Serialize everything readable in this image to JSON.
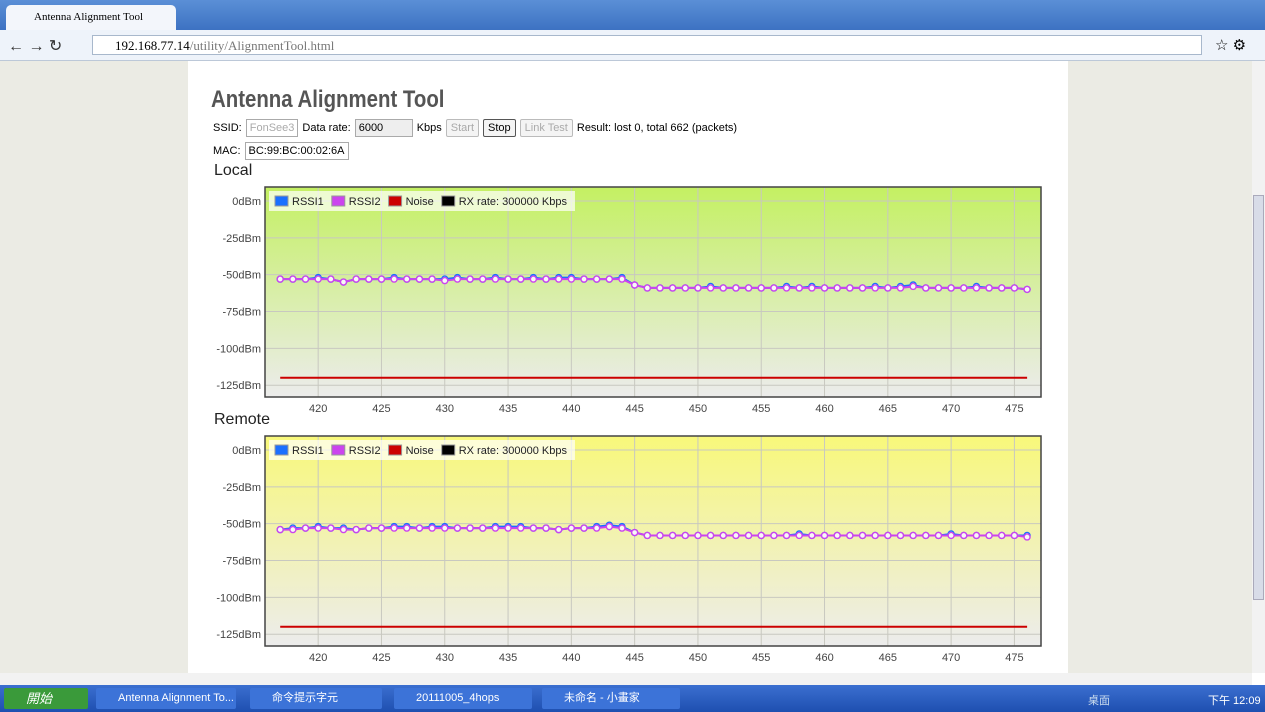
{
  "browser": {
    "tab": "Antenna Alignment Tool",
    "url_host": "192.168.77.14",
    "url_path": "/utility/AlignmentTool.html"
  },
  "page": {
    "heading": "Antenna Alignment Tool",
    "ssid_label": "SSID:",
    "ssid": "FonSee3",
    "rate_label": "Data rate:",
    "rate": "6000",
    "rate_unit": "Kbps",
    "start": "Start",
    "stop": "Stop",
    "link_test": "Link Test",
    "result": "Result: lost 0, total 662 (packets)",
    "mac_label": "MAC:",
    "mac": "BC:99:BC:00:02:6A"
  },
  "taskbar": {
    "start": "開始",
    "items": [
      "Antenna Alignment To...",
      "命令提示字元",
      "20111005_4hops",
      "未命名 - 小畫家"
    ],
    "desktop": "桌面",
    "clock": "下午 12:09"
  },
  "chart_data": [
    {
      "type": "line",
      "title": "Local",
      "legend": "upper left",
      "grid": true,
      "x": [
        417,
        418,
        419,
        420,
        421,
        422,
        423,
        424,
        425,
        426,
        427,
        428,
        429,
        430,
        431,
        432,
        433,
        434,
        435,
        436,
        437,
        438,
        439,
        440,
        441,
        442,
        443,
        444,
        445,
        446,
        447,
        448,
        449,
        450,
        451,
        452,
        453,
        454,
        455,
        456,
        457,
        458,
        459,
        460,
        461,
        462,
        463,
        464,
        465,
        466,
        467,
        468,
        469,
        470,
        471,
        472,
        473,
        474,
        475,
        476
      ],
      "xlim": [
        415.8,
        477.1
      ],
      "xticks": [
        420,
        425,
        430,
        435,
        440,
        445,
        450,
        455,
        460,
        465,
        470,
        475
      ],
      "ylim": [
        -133,
        9.5
      ],
      "yticks": [
        {
          "value": 0,
          "label": "0dBm"
        },
        {
          "value": -25,
          "label": "-25dBm"
        },
        {
          "value": -50,
          "label": "-50dBm"
        },
        {
          "value": -75,
          "label": "-75dBm"
        },
        {
          "value": -100,
          "label": "-100dBm"
        },
        {
          "value": -125,
          "label": "-125dBm"
        }
      ],
      "series": [
        {
          "name": "RSSI1",
          "color": "#1a6fff",
          "values": [
            -53,
            -53,
            -53,
            -52,
            -53,
            -55,
            -53,
            -53,
            -53,
            -52,
            -53,
            -53,
            -53,
            -53,
            -52,
            -53,
            -53,
            -52,
            -53,
            -53,
            -52,
            -53,
            -52,
            -52,
            -53,
            -53,
            -53,
            -52,
            -57,
            -59,
            -59,
            -59,
            -59,
            -59,
            -58,
            -59,
            -59,
            -59,
            -59,
            -59,
            -58,
            -59,
            -58,
            -59,
            -59,
            -59,
            -59,
            -58,
            -59,
            -58,
            -57,
            -59,
            -59,
            -59,
            -59,
            -58,
            -59,
            -59,
            -59,
            -60
          ]
        },
        {
          "name": "RSSI2",
          "color": "#cc44ee",
          "values": [
            -53,
            -53,
            -53,
            -53,
            -53,
            -55,
            -53,
            -53,
            -53,
            -53,
            -53,
            -53,
            -53,
            -54,
            -53,
            -53,
            -53,
            -53,
            -53,
            -53,
            -53,
            -53,
            -53,
            -53,
            -53,
            -53,
            -53,
            -53,
            -57,
            -59,
            -59,
            -59,
            -59,
            -59,
            -59,
            -59,
            -59,
            -59,
            -59,
            -59,
            -59,
            -59,
            -59,
            -59,
            -59,
            -59,
            -59,
            -59,
            -59,
            -59,
            -58,
            -59,
            -59,
            -59,
            -59,
            -59,
            -59,
            -59,
            -59,
            -60
          ]
        },
        {
          "name": "Noise",
          "color": "#cc0000",
          "values": [
            -120,
            -120,
            -120,
            -120,
            -120,
            -120,
            -120,
            -120,
            -120,
            -120,
            -120,
            -120,
            -120,
            -120,
            -120,
            -120,
            -120,
            -120,
            -120,
            -120,
            -120,
            -120,
            -120,
            -120,
            -120,
            -120,
            -120,
            -120,
            -120,
            -120,
            -120,
            -120,
            -120,
            -120,
            -120,
            -120,
            -120,
            -120,
            -120,
            -120,
            -120,
            -120,
            -120,
            -120,
            -120,
            -120,
            -120,
            -120,
            -120,
            -120,
            -120,
            -120,
            -120,
            -120,
            -120,
            -120,
            -120,
            -120,
            -120,
            -120
          ]
        },
        {
          "name": "RX rate: 300000 Kbps",
          "color": "#000000"
        }
      ]
    },
    {
      "type": "line",
      "title": "Remote",
      "legend": "upper left",
      "grid": true,
      "x": [
        417,
        418,
        419,
        420,
        421,
        422,
        423,
        424,
        425,
        426,
        427,
        428,
        429,
        430,
        431,
        432,
        433,
        434,
        435,
        436,
        437,
        438,
        439,
        440,
        441,
        442,
        443,
        444,
        445,
        446,
        447,
        448,
        449,
        450,
        451,
        452,
        453,
        454,
        455,
        456,
        457,
        458,
        459,
        460,
        461,
        462,
        463,
        464,
        465,
        466,
        467,
        468,
        469,
        470,
        471,
        472,
        473,
        474,
        475,
        476
      ],
      "xlim": [
        415.8,
        477.1
      ],
      "xticks": [
        420,
        425,
        430,
        435,
        440,
        445,
        450,
        455,
        460,
        465,
        470,
        475
      ],
      "ylim": [
        -133,
        9.5
      ],
      "yticks": [
        {
          "value": 0,
          "label": "0dBm"
        },
        {
          "value": -25,
          "label": "-25dBm"
        },
        {
          "value": -50,
          "label": "-50dBm"
        },
        {
          "value": -75,
          "label": "-75dBm"
        },
        {
          "value": -100,
          "label": "-100dBm"
        },
        {
          "value": -125,
          "label": "-125dBm"
        }
      ],
      "series": [
        {
          "name": "RSSI1",
          "color": "#1a6fff",
          "values": [
            -54,
            -53,
            -53,
            -52,
            -53,
            -53,
            -54,
            -53,
            -53,
            -52,
            -52,
            -53,
            -52,
            -52,
            -53,
            -53,
            -53,
            -52,
            -52,
            -52,
            -53,
            -53,
            -54,
            -53,
            -53,
            -52,
            -51,
            -52,
            -56,
            -58,
            -58,
            -58,
            -58,
            -58,
            -58,
            -58,
            -58,
            -58,
            -58,
            -58,
            -58,
            -57,
            -58,
            -58,
            -58,
            -58,
            -58,
            -58,
            -58,
            -58,
            -58,
            -58,
            -58,
            -57,
            -58,
            -58,
            -58,
            -58,
            -58,
            -58
          ]
        },
        {
          "name": "RSSI2",
          "color": "#cc44ee",
          "values": [
            -54,
            -54,
            -53,
            -53,
            -53,
            -54,
            -54,
            -53,
            -53,
            -53,
            -53,
            -53,
            -53,
            -53,
            -53,
            -53,
            -53,
            -53,
            -53,
            -53,
            -53,
            -53,
            -54,
            -53,
            -53,
            -53,
            -52,
            -53,
            -56,
            -58,
            -58,
            -58,
            -58,
            -58,
            -58,
            -58,
            -58,
            -58,
            -58,
            -58,
            -58,
            -58,
            -58,
            -58,
            -58,
            -58,
            -58,
            -58,
            -58,
            -58,
            -58,
            -58,
            -58,
            -58,
            -58,
            -58,
            -58,
            -58,
            -58,
            -59
          ]
        },
        {
          "name": "Noise",
          "color": "#cc0000",
          "values": [
            -120,
            -120,
            -120,
            -120,
            -120,
            -120,
            -120,
            -120,
            -120,
            -120,
            -120,
            -120,
            -120,
            -120,
            -120,
            -120,
            -120,
            -120,
            -120,
            -120,
            -120,
            -120,
            -120,
            -120,
            -120,
            -120,
            -120,
            -120,
            -120,
            -120,
            -120,
            -120,
            -120,
            -120,
            -120,
            -120,
            -120,
            -120,
            -120,
            -120,
            -120,
            -120,
            -120,
            -120,
            -120,
            -120,
            -120,
            -120,
            -120,
            -120,
            -120,
            -120,
            -120,
            -120,
            -120,
            -120,
            -120,
            -120,
            -120,
            -120
          ]
        },
        {
          "name": "RX rate: 300000 Kbps",
          "color": "#000000"
        }
      ]
    }
  ]
}
